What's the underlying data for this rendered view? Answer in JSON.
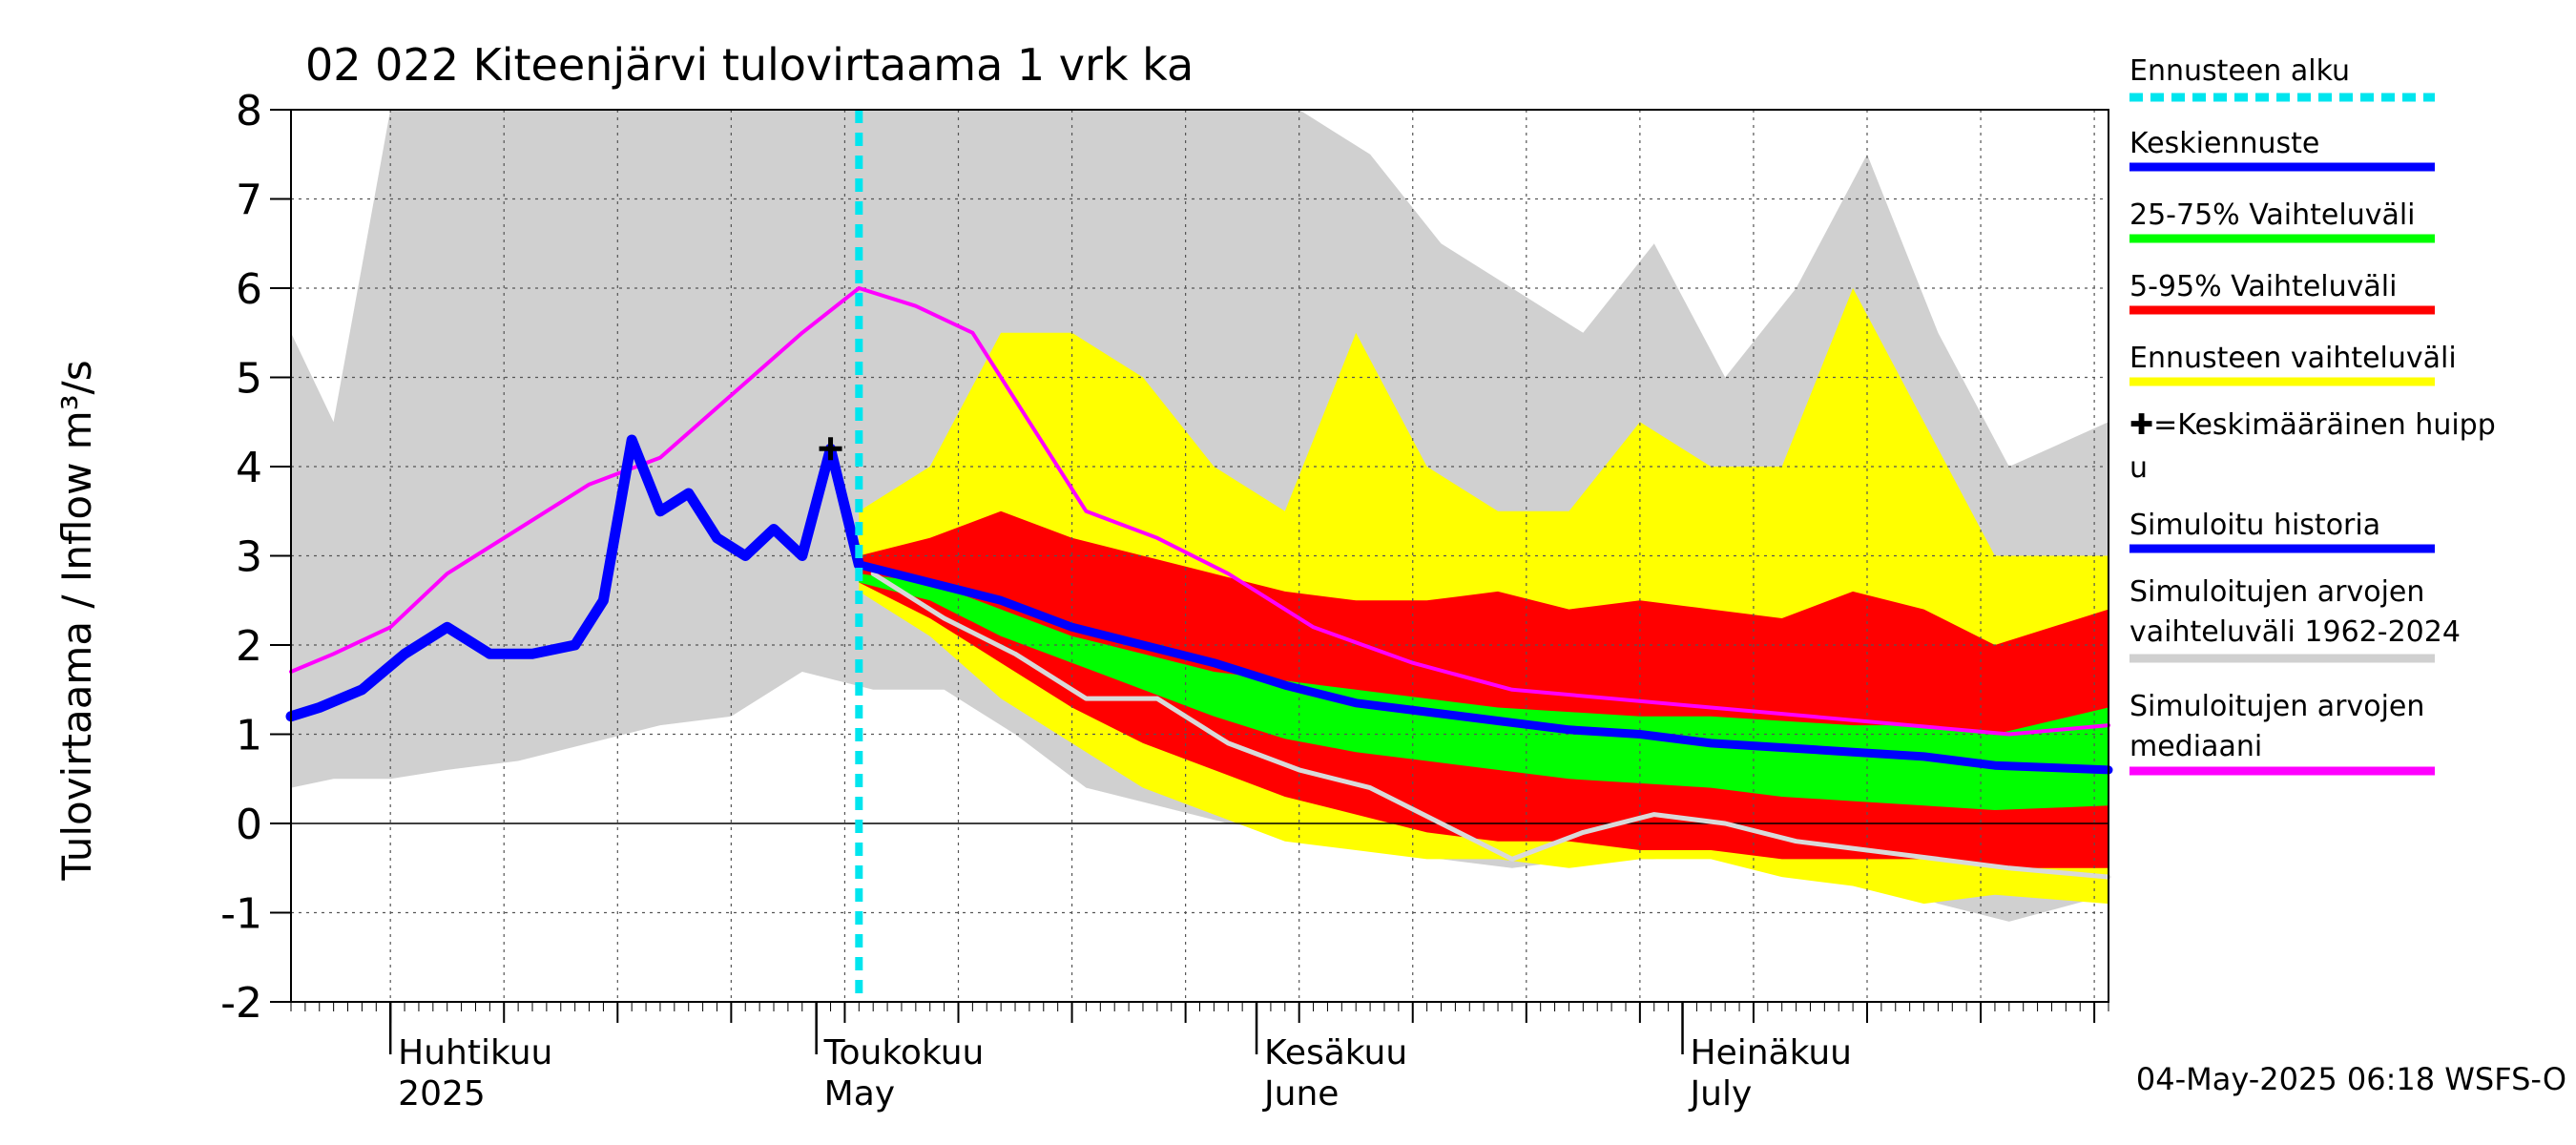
{
  "chart_data": {
    "type": "area",
    "title": "02 022 Kiteenjärvi tulovirtaama 1 vrk ka",
    "ylabel": "Tulovirtaama / Inflow    m³/s",
    "ylim": [
      -2,
      8
    ],
    "yticks": [
      "-2",
      "-1",
      "0",
      "1",
      "2",
      "3",
      "4",
      "5",
      "6",
      "7",
      "8"
    ],
    "xlim": [
      "2025-03-25",
      "2025-07-31"
    ],
    "month_labels": [
      {
        "fi": "Huhtikuu",
        "en": "2025",
        "date": "2025-04-01"
      },
      {
        "fi": "Toukokuu",
        "en": "May",
        "date": "2025-05-01"
      },
      {
        "fi": "Kesäkuu",
        "en": "June",
        "date": "2025-06-01"
      },
      {
        "fi": "Heinäkuu",
        "en": "July",
        "date": "2025-07-01"
      }
    ],
    "forecast_start": "2025-05-04",
    "mean_peak": {
      "date": "2025-05-02",
      "value": 4.2
    },
    "timestamp": "04-May-2025 06:18 WSFS-O",
    "grid": true,
    "colors": {
      "forecast_start": "#00e5ee",
      "median_forecast": "#0000ff",
      "p25_75": "#00ff00",
      "p5_95": "#ff0000",
      "forecast_range": "#ffff00",
      "sim_history": "#0000ff",
      "hist_range": "#d0d0d0",
      "hist_median": "#ff00ff",
      "hist_sim_line": "#d9d9d9"
    },
    "legend": [
      {
        "label": "Ennusteen alku",
        "key": "forecast_start",
        "style": "dashed"
      },
      {
        "label": "Keskiennuste",
        "key": "median_forecast",
        "style": "solid"
      },
      {
        "label": "25-75% Vaihteluväli",
        "key": "p25_75",
        "style": "solid"
      },
      {
        "label": "5-95% Vaihteluväli",
        "key": "p5_95",
        "style": "solid"
      },
      {
        "label": "Ennusteen vaihteluväli",
        "key": "forecast_range",
        "style": "solid"
      },
      {
        "label": "✚=Keskimääräinen huippu",
        "key": "peak",
        "style": "none"
      },
      {
        "label": "Simuloitu historia",
        "key": "sim_history",
        "style": "solid"
      },
      {
        "label": "Simuloitujen arvojen vaihteluväli 1962-2024",
        "key": "hist_range",
        "style": "solid"
      },
      {
        "label": "Simuloitujen arvojen mediaani",
        "key": "hist_median",
        "style": "solid"
      }
    ],
    "hist_range_dates": [
      "2025-03-25",
      "2025-03-28",
      "2025-04-01",
      "2025-04-05",
      "2025-04-10",
      "2025-04-15",
      "2025-04-20",
      "2025-04-25",
      "2025-04-30",
      "2025-05-05",
      "2025-05-10",
      "2025-05-15",
      "2025-05-20",
      "2025-05-25",
      "2025-05-30",
      "2025-06-04",
      "2025-06-09",
      "2025-06-14",
      "2025-06-19",
      "2025-06-24",
      "2025-06-29",
      "2025-07-04",
      "2025-07-09",
      "2025-07-14",
      "2025-07-19",
      "2025-07-24",
      "2025-07-31"
    ],
    "hist_range_upper": [
      5.5,
      4.5,
      8.0,
      8.0,
      8.0,
      8.0,
      8.0,
      8.0,
      8.0,
      8.0,
      8.0,
      8.0,
      8.0,
      8.0,
      8.0,
      8.0,
      7.5,
      6.5,
      6.0,
      5.5,
      6.5,
      5.0,
      6.0,
      7.5,
      5.5,
      4.0,
      4.5
    ],
    "hist_range_lower": [
      0.4,
      0.5,
      0.5,
      0.6,
      0.7,
      0.9,
      1.1,
      1.2,
      1.7,
      1.5,
      1.5,
      1.0,
      0.4,
      0.2,
      0.0,
      -0.1,
      -0.2,
      -0.4,
      -0.5,
      -0.4,
      -0.4,
      -0.3,
      -0.5,
      -0.6,
      -0.9,
      -1.1,
      -0.8
    ],
    "hist_median_dates": [
      "2025-03-25",
      "2025-03-28",
      "2025-04-01",
      "2025-04-05",
      "2025-04-10",
      "2025-04-15",
      "2025-04-20",
      "2025-04-25",
      "2025-04-30",
      "2025-05-04",
      "2025-05-08",
      "2025-05-12",
      "2025-05-16",
      "2025-05-20",
      "2025-05-25",
      "2025-05-30",
      "2025-06-05",
      "2025-06-12",
      "2025-06-19",
      "2025-06-26",
      "2025-07-03",
      "2025-07-10",
      "2025-07-17",
      "2025-07-24",
      "2025-07-31"
    ],
    "hist_median": [
      1.7,
      1.9,
      2.2,
      2.8,
      3.3,
      3.8,
      4.1,
      4.8,
      5.5,
      6.0,
      5.8,
      5.5,
      4.5,
      3.5,
      3.2,
      2.8,
      2.2,
      1.8,
      1.5,
      1.4,
      1.3,
      1.2,
      1.1,
      1.0,
      1.1
    ],
    "sim_history_dates": [
      "2025-03-25",
      "2025-03-27",
      "2025-03-30",
      "2025-04-02",
      "2025-04-05",
      "2025-04-08",
      "2025-04-11",
      "2025-04-14",
      "2025-04-16",
      "2025-04-18",
      "2025-04-20",
      "2025-04-22",
      "2025-04-24",
      "2025-04-26",
      "2025-04-28",
      "2025-04-30",
      "2025-05-02",
      "2025-05-04"
    ],
    "sim_history": [
      1.2,
      1.3,
      1.5,
      1.9,
      2.2,
      1.9,
      1.9,
      2.0,
      2.5,
      4.3,
      3.5,
      3.7,
      3.2,
      3.0,
      3.3,
      3.0,
      4.2,
      2.9
    ],
    "forecast_dates": [
      "2025-05-04",
      "2025-05-09",
      "2025-05-14",
      "2025-05-19",
      "2025-05-24",
      "2025-05-29",
      "2025-06-03",
      "2025-06-08",
      "2025-06-13",
      "2025-06-18",
      "2025-06-23",
      "2025-06-28",
      "2025-07-03",
      "2025-07-08",
      "2025-07-13",
      "2025-07-18",
      "2025-07-23",
      "2025-07-31"
    ],
    "forecast_max": [
      3.5,
      4.0,
      5.5,
      5.5,
      5.0,
      4.0,
      3.5,
      5.5,
      4.0,
      3.5,
      3.5,
      4.5,
      4.0,
      4.0,
      6.0,
      4.5,
      3.0,
      3.0
    ],
    "p95": [
      3.0,
      3.2,
      3.5,
      3.2,
      3.0,
      2.8,
      2.6,
      2.5,
      2.5,
      2.6,
      2.4,
      2.5,
      2.4,
      2.3,
      2.6,
      2.4,
      2.0,
      2.4
    ],
    "p75": [
      2.8,
      2.7,
      2.4,
      2.1,
      1.9,
      1.7,
      1.6,
      1.5,
      1.4,
      1.3,
      1.25,
      1.2,
      1.2,
      1.15,
      1.1,
      1.1,
      1.0,
      1.3
    ],
    "median_forecast": [
      2.9,
      2.7,
      2.5,
      2.2,
      2.0,
      1.8,
      1.55,
      1.35,
      1.25,
      1.15,
      1.05,
      1.0,
      0.9,
      0.85,
      0.8,
      0.75,
      0.65,
      0.6
    ],
    "p25": [
      2.7,
      2.5,
      2.1,
      1.8,
      1.5,
      1.2,
      0.95,
      0.8,
      0.7,
      0.6,
      0.5,
      0.45,
      0.4,
      0.3,
      0.25,
      0.2,
      0.15,
      0.2
    ],
    "p5": [
      2.7,
      2.3,
      1.8,
      1.3,
      0.9,
      0.6,
      0.3,
      0.1,
      -0.1,
      -0.2,
      -0.2,
      -0.3,
      -0.3,
      -0.4,
      -0.4,
      -0.4,
      -0.5,
      -0.5
    ],
    "forecast_min": [
      2.6,
      2.1,
      1.4,
      0.9,
      0.4,
      0.1,
      -0.2,
      -0.3,
      -0.4,
      -0.4,
      -0.5,
      -0.4,
      -0.4,
      -0.6,
      -0.7,
      -0.9,
      -0.8,
      -0.9
    ],
    "hist_sim_line_dates": [
      "2025-05-05",
      "2025-05-10",
      "2025-05-15",
      "2025-05-20",
      "2025-05-25",
      "2025-05-30",
      "2025-06-04",
      "2025-06-09",
      "2025-06-14",
      "2025-06-19",
      "2025-06-24",
      "2025-06-29",
      "2025-07-04",
      "2025-07-09",
      "2025-07-14",
      "2025-07-19",
      "2025-07-24",
      "2025-07-31"
    ],
    "hist_sim_line": [
      2.8,
      2.3,
      1.9,
      1.4,
      1.4,
      0.9,
      0.6,
      0.4,
      0.0,
      -0.4,
      -0.1,
      0.1,
      0.0,
      -0.2,
      -0.3,
      -0.4,
      -0.5,
      -0.6
    ]
  }
}
